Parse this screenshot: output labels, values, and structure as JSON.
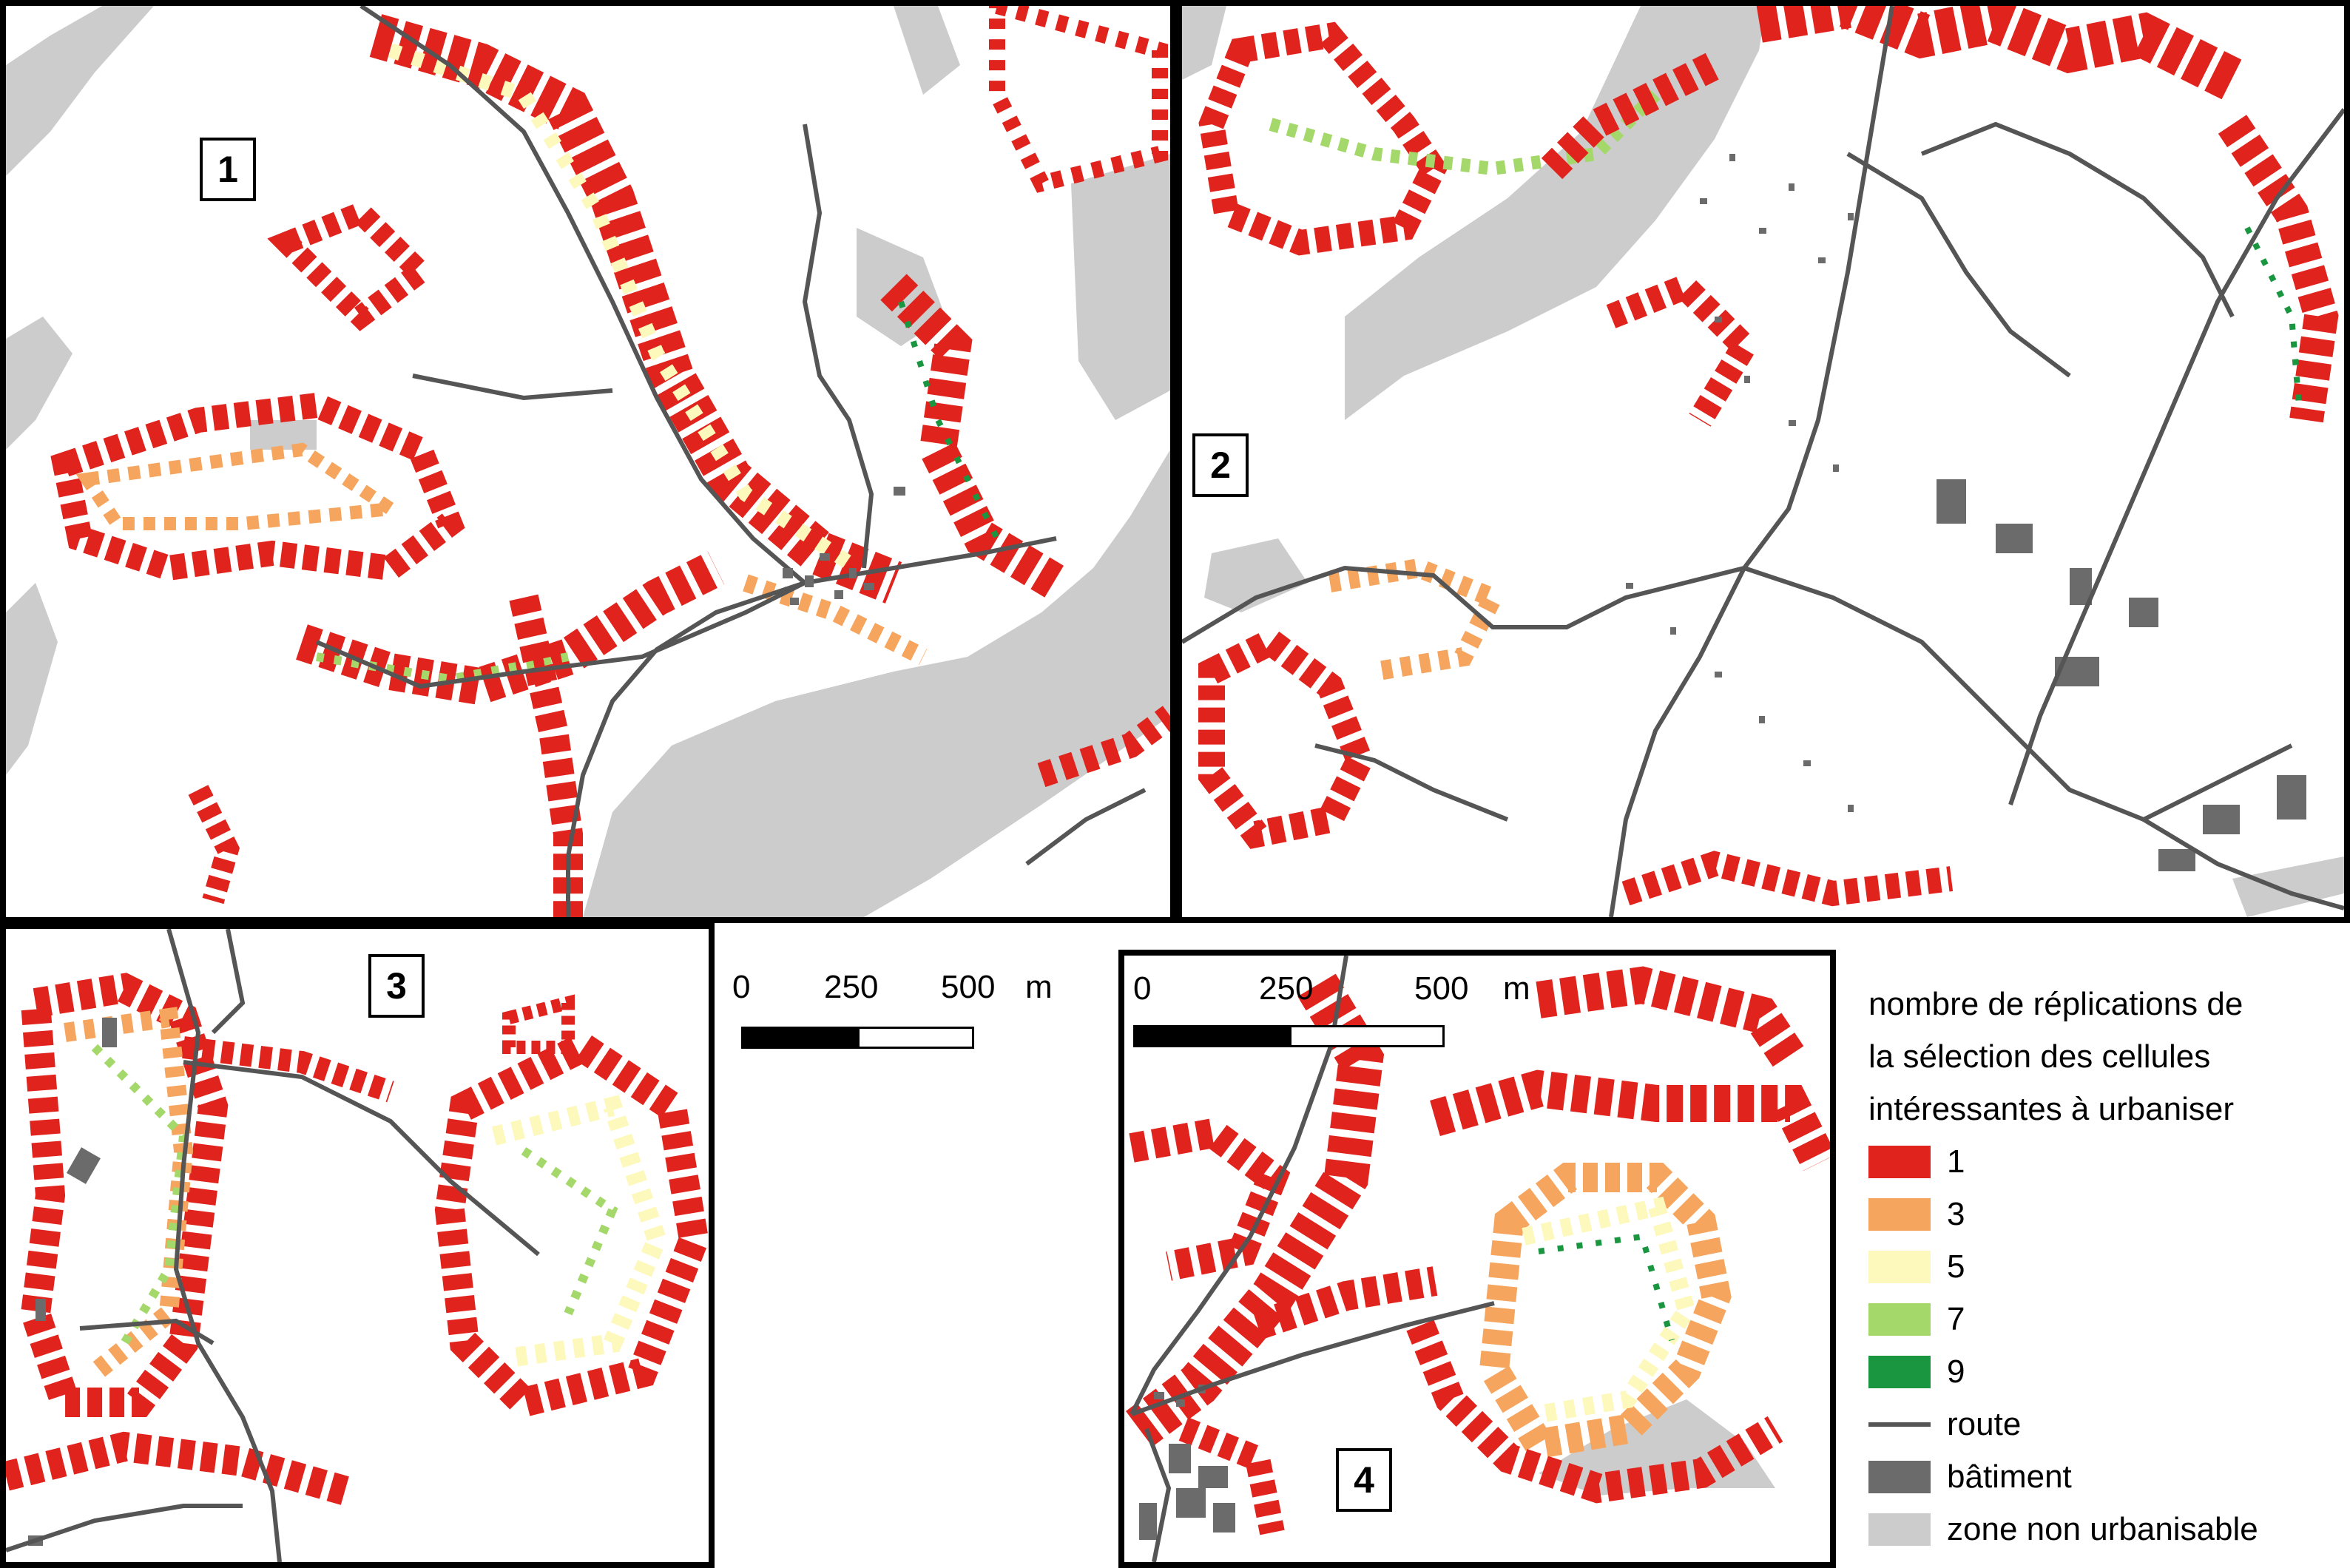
{
  "panels": [
    {
      "label": "1"
    },
    {
      "label": "2"
    },
    {
      "label": "3"
    },
    {
      "label": "4"
    }
  ],
  "scalebars": [
    {
      "ticks": [
        "0",
        "250",
        "500"
      ],
      "unit": "m"
    },
    {
      "ticks": [
        "0",
        "250",
        "500"
      ],
      "unit": "m"
    }
  ],
  "legend": {
    "title_lines": [
      "nombre de réplications de",
      "la sélection des cellules",
      "intéressantes à urbaniser"
    ],
    "classes": [
      {
        "label": "1",
        "color": "#e0231c"
      },
      {
        "label": "3",
        "color": "#f6a55e"
      },
      {
        "label": "5",
        "color": "#fdf8bc"
      },
      {
        "label": "7",
        "color": "#a4d86a"
      },
      {
        "label": "9",
        "color": "#1a9641"
      }
    ],
    "items": [
      {
        "label": "route",
        "kind": "line",
        "color": "#555555"
      },
      {
        "label": "bâtiment",
        "kind": "box",
        "color": "#6b6b6b"
      },
      {
        "label": "zone non urbanisable",
        "kind": "box",
        "color": "#cccccc"
      }
    ]
  }
}
